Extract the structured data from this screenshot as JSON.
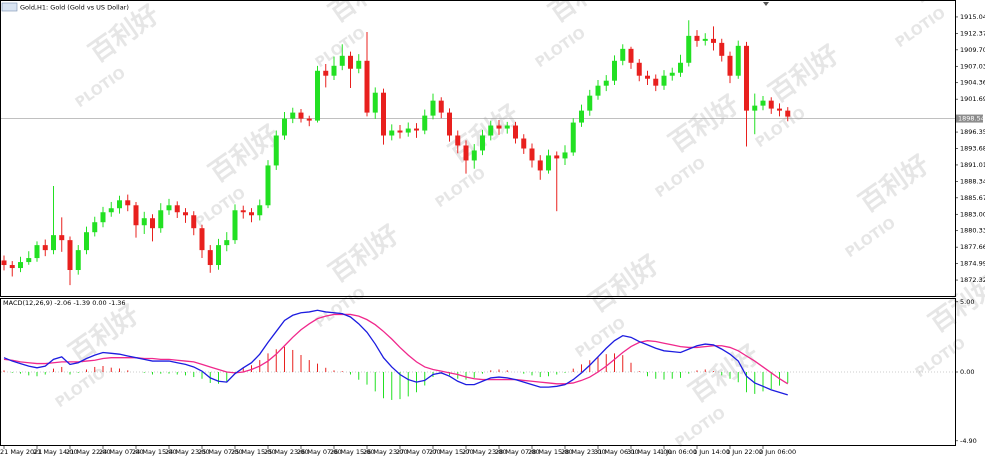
{
  "chart_data": [
    {
      "type": "candlestick",
      "title": "Gold,H1: Gold (Gold vs US Dollar)",
      "categories": [
        "21 May 2021",
        null,
        null,
        null,
        "21 May 14:00",
        null,
        null,
        null,
        "21 May 22:00",
        null,
        null,
        null,
        "24 May 07:00",
        null,
        null,
        null,
        "24 May 15:00",
        null,
        null,
        null,
        "24 May 23:00",
        null,
        null,
        null,
        "25 May 07:00",
        null,
        null,
        null,
        "25 May 15:00",
        null,
        null,
        null,
        "25 May 23:00",
        null,
        null,
        null,
        "26 May 07:00",
        null,
        null,
        null,
        "26 May 15:00",
        null,
        null,
        null,
        "26 May 23:00",
        null,
        null,
        null,
        "27 May 07:00",
        null,
        null,
        null,
        "27 May 15:00",
        null,
        null,
        null,
        "27 May 23:00",
        null,
        null,
        null,
        "28 May 07:00",
        null,
        null,
        null,
        "28 May 15:00",
        null,
        null,
        null,
        "28 May 23:00",
        null,
        null,
        null,
        "31 May 06:00",
        null,
        null,
        null,
        "31 May 14:00",
        null,
        null,
        null,
        "1 Jun 06:00",
        null,
        null,
        null,
        "1 Jun 14:00",
        null,
        null,
        null,
        "1 Jun 22:00",
        null,
        null,
        null,
        "2 Jun 06:00",
        null,
        null,
        null
      ],
      "open": [
        1875.5,
        1874.76,
        1874.27,
        1875.24,
        1875.89,
        1877.99,
        1877.18,
        1879.61,
        1878.8,
        1873.95,
        1877.18,
        1880.09,
        1881.71,
        1883.33,
        1883.98,
        1885.27,
        1884.46,
        1881.22,
        1882.36,
        1880.74,
        1883.65,
        1884.46,
        1883.33,
        1882.84,
        1880.74,
        1877.18,
        1874.76,
        1877.99,
        1878.8,
        1883.65,
        1883.33,
        1882.84,
        1884.46,
        1890.93,
        1895.79,
        1898.54,
        1899.51,
        1898.54,
        1898.21,
        1906.3,
        1905.5,
        1907.11,
        1908.73,
        1906.63,
        1907.92,
        1899.51,
        1902.74,
        1895.79,
        1896.6,
        1896.27,
        1896.92,
        1896.6,
        1899.02,
        1901.45,
        1899.51,
        1895.79,
        1894.17,
        1891.74,
        1893.36,
        1895.79,
        1897.41,
        1896.92,
        1897.41,
        1895.3,
        1893.68,
        1891.74,
        1890.12,
        1892.55,
        1892.07,
        1893.04,
        1897.89,
        1899.83,
        1902.26,
        1903.88,
        1904.69,
        1907.92,
        1909.86,
        1907.6,
        1905.5,
        1905.01,
        1903.88,
        1905.5,
        1905.98,
        1907.6,
        1911.97,
        1911.16,
        1911.48,
        1910.83,
        1908.73,
        1905.5,
        1910.35,
        1899.83,
        1900.64,
        1901.45,
        1900.16,
        1899.83
      ],
      "high": [
        1876.3,
        1875.4,
        1876.1,
        1877.0,
        1878.6,
        1878.9,
        1887.6,
        1882.5,
        1879.4,
        1878.0,
        1881.0,
        1882.6,
        1884.2,
        1885.0,
        1886.0,
        1886.2,
        1885.0,
        1883.4,
        1883.0,
        1884.8,
        1885.5,
        1885.1,
        1884.0,
        1883.5,
        1881.3,
        1878.0,
        1879.0,
        1880.1,
        1884.6,
        1884.4,
        1884.0,
        1885.4,
        1891.8,
        1896.6,
        1899.6,
        1900.3,
        1900.1,
        1899.0,
        1907.1,
        1907.4,
        1908.6,
        1910.6,
        1909.4,
        1909.0,
        1912.6,
        1903.6,
        1903.4,
        1897.6,
        1897.5,
        1897.9,
        1897.8,
        1900.0,
        1902.6,
        1902.0,
        1900.2,
        1896.6,
        1895.0,
        1894.4,
        1896.7,
        1898.2,
        1898.3,
        1898.0,
        1898.0,
        1896.0,
        1894.5,
        1892.6,
        1893.5,
        1893.2,
        1894.2,
        1898.6,
        1900.8,
        1903.2,
        1904.8,
        1905.6,
        1908.8,
        1910.6,
        1910.2,
        1908.2,
        1906.3,
        1905.7,
        1906.4,
        1906.8,
        1908.9,
        1914.5,
        1912.9,
        1912.4,
        1913.5,
        1911.5,
        1909.4,
        1911.2,
        1911.0,
        1902.6,
        1902.2,
        1902.0,
        1901.0,
        1900.4
      ],
      "low": [
        1873.9,
        1872.9,
        1873.6,
        1874.8,
        1875.3,
        1876.2,
        1876.5,
        1876.9,
        1871.5,
        1873.2,
        1876.5,
        1879.4,
        1880.9,
        1882.6,
        1883.1,
        1883.5,
        1879.2,
        1879.8,
        1878.6,
        1880.0,
        1882.9,
        1882.4,
        1881.6,
        1879.6,
        1875.9,
        1873.5,
        1874.0,
        1877.0,
        1878.2,
        1882.3,
        1881.7,
        1882.0,
        1884.0,
        1890.2,
        1895.1,
        1897.8,
        1897.9,
        1897.3,
        1897.9,
        1903.6,
        1904.8,
        1906.4,
        1903.5,
        1905.9,
        1898.9,
        1898.5,
        1894.3,
        1895.0,
        1895.3,
        1895.6,
        1895.4,
        1896.0,
        1898.4,
        1898.6,
        1894.8,
        1892.9,
        1889.6,
        1890.4,
        1892.6,
        1895.0,
        1895.9,
        1896.1,
        1894.5,
        1892.8,
        1890.6,
        1888.6,
        1889.6,
        1883.5,
        1891.0,
        1892.5,
        1897.2,
        1899.0,
        1901.6,
        1903.0,
        1904.0,
        1907.2,
        1906.6,
        1904.6,
        1904.0,
        1903.0,
        1903.2,
        1904.7,
        1905.3,
        1907.0,
        1910.2,
        1910.4,
        1909.6,
        1907.8,
        1904.3,
        1905.0,
        1894.0,
        1896.0,
        1899.9,
        1899.3,
        1898.9,
        1898.1
      ],
      "close": [
        1874.76,
        1874.27,
        1875.24,
        1875.89,
        1877.99,
        1877.18,
        1879.61,
        1878.8,
        1873.95,
        1877.18,
        1880.09,
        1881.71,
        1883.33,
        1883.98,
        1885.27,
        1884.46,
        1881.22,
        1882.36,
        1880.74,
        1883.65,
        1884.46,
        1883.33,
        1882.84,
        1880.74,
        1877.18,
        1874.76,
        1877.99,
        1878.8,
        1883.65,
        1883.33,
        1882.84,
        1884.46,
        1890.93,
        1895.79,
        1898.54,
        1899.51,
        1898.54,
        1898.21,
        1906.3,
        1905.5,
        1907.11,
        1908.73,
        1906.63,
        1907.92,
        1899.51,
        1902.74,
        1895.79,
        1896.6,
        1896.27,
        1896.92,
        1896.6,
        1899.02,
        1901.45,
        1899.51,
        1895.79,
        1894.17,
        1891.74,
        1893.36,
        1895.79,
        1897.41,
        1896.92,
        1897.41,
        1895.3,
        1893.68,
        1891.74,
        1890.12,
        1892.55,
        1892.07,
        1893.04,
        1897.89,
        1899.83,
        1902.26,
        1903.88,
        1904.69,
        1907.92,
        1909.86,
        1907.6,
        1905.5,
        1905.01,
        1903.88,
        1905.5,
        1905.98,
        1907.6,
        1911.97,
        1911.16,
        1911.48,
        1910.83,
        1908.73,
        1905.5,
        1910.35,
        1899.83,
        1900.64,
        1901.45,
        1900.16,
        1899.83,
        1898.86
      ],
      "up_color": "#22e022",
      "down_color": "#e8201e",
      "ylim": [
        1869.73,
        1917.63
      ],
      "yticks": [
        1915.04,
        1912.37,
        {
          "value": 1909.7,
          "label": "1909.70"
        },
        1907.03,
        1904.36,
        1901.69,
        1896.35,
        1893.68,
        1891.01,
        1888.34,
        1885.67,
        {
          "value": 1883,
          "label": "1883.00"
        },
        1880.33,
        1877.66,
        1874.99,
        1872.32
      ],
      "current_price": 1898.54
    },
    {
      "type": "macd",
      "title": "MACD(12,26,9) -2.06 -1.39 0.00 -1.36",
      "histogram": {
        "positive_color": "#e8201e",
        "negative_color": "#22e022",
        "values": [
          0.12,
          -0.06,
          -0.12,
          -0.24,
          -0.3,
          -0.18,
          0.24,
          0.36,
          -0.18,
          -0.06,
          0.18,
          0.36,
          0.43,
          0.31,
          0.25,
          0.12,
          0.0,
          -0.06,
          -0.18,
          -0.12,
          -0.12,
          -0.18,
          -0.24,
          -0.36,
          -0.48,
          -0.78,
          -0.84,
          -0.72,
          -0.06,
          0.3,
          0.48,
          0.85,
          1.33,
          1.62,
          1.8,
          1.57,
          1.21,
          0.85,
          0.6,
          0.3,
          0.12,
          0.06,
          -0.18,
          -0.55,
          -0.9,
          -1.38,
          -1.87,
          -1.99,
          -1.93,
          -1.74,
          -1.44,
          -0.96,
          -0.36,
          -0.12,
          -0.24,
          -0.48,
          -0.54,
          -0.42,
          -0.12,
          0.12,
          0.18,
          0.12,
          0.0,
          -0.12,
          -0.24,
          -0.36,
          -0.3,
          -0.18,
          -0.06,
          0.24,
          0.54,
          0.84,
          1.08,
          1.27,
          1.33,
          1.2,
          0.66,
          0.06,
          -0.3,
          -0.48,
          -0.54,
          -0.48,
          -0.42,
          -0.12,
          0.12,
          0.18,
          0.06,
          -0.24,
          -0.48,
          -0.73,
          -1.44,
          -1.56,
          -1.38,
          -1.21,
          -0.97,
          -0.79
        ]
      },
      "macd": {
        "color": "#1c1ce0",
        "values": [
          1.02,
          0.78,
          0.6,
          0.42,
          0.3,
          0.42,
          0.9,
          1.08,
          0.54,
          0.66,
          0.96,
          1.2,
          1.39,
          1.33,
          1.27,
          1.14,
          1.02,
          0.9,
          0.78,
          0.78,
          0.78,
          0.66,
          0.54,
          0.36,
          0.06,
          -0.42,
          -0.66,
          -0.72,
          -0.12,
          0.3,
          0.66,
          1.27,
          2.11,
          2.89,
          3.67,
          4.04,
          4.22,
          4.28,
          4.4,
          4.28,
          4.22,
          4.16,
          3.92,
          3.43,
          2.83,
          1.99,
          1.02,
          0.36,
          -0.18,
          -0.54,
          -0.72,
          -0.6,
          -0.18,
          -0.06,
          -0.3,
          -0.66,
          -0.9,
          -0.9,
          -0.66,
          -0.42,
          -0.36,
          -0.42,
          -0.54,
          -0.72,
          -0.9,
          -1.08,
          -1.08,
          -1.02,
          -0.9,
          -0.54,
          -0.06,
          0.48,
          1.08,
          1.69,
          2.23,
          2.59,
          2.47,
          2.17,
          1.93,
          1.69,
          1.51,
          1.45,
          1.39,
          1.63,
          1.87,
          1.99,
          1.93,
          1.63,
          1.27,
          0.78,
          -0.3,
          -0.78,
          -1.02,
          -1.27,
          -1.45,
          -1.63
        ]
      },
      "signal": {
        "color": "#f0288c",
        "values": [
          0.9,
          0.84,
          0.72,
          0.66,
          0.6,
          0.6,
          0.66,
          0.72,
          0.72,
          0.72,
          0.78,
          0.84,
          0.96,
          1.02,
          1.02,
          1.02,
          1.02,
          0.96,
          0.96,
          0.9,
          0.9,
          0.84,
          0.78,
          0.72,
          0.54,
          0.36,
          0.18,
          0.0,
          -0.06,
          0.0,
          0.18,
          0.42,
          0.78,
          1.27,
          1.87,
          2.47,
          3.01,
          3.43,
          3.8,
          3.98,
          4.1,
          4.1,
          4.1,
          3.98,
          3.73,
          3.37,
          2.89,
          2.35,
          1.75,
          1.2,
          0.72,
          0.36,
          0.18,
          0.06,
          -0.06,
          -0.18,
          -0.36,
          -0.48,
          -0.54,
          -0.54,
          -0.54,
          -0.54,
          -0.54,
          -0.6,
          -0.66,
          -0.72,
          -0.78,
          -0.84,
          -0.84,
          -0.78,
          -0.6,
          -0.36,
          0.0,
          0.42,
          0.9,
          1.39,
          1.81,
          2.11,
          2.23,
          2.17,
          2.05,
          1.93,
          1.81,
          1.75,
          1.75,
          1.81,
          1.87,
          1.87,
          1.75,
          1.51,
          1.14,
          0.78,
          0.36,
          -0.06,
          -0.48,
          -0.84
        ]
      },
      "ylim": [
        -5.2,
        5.2
      ],
      "yticks": [
        {
          "value": 5,
          "label": "5.00"
        },
        {
          "value": 0,
          "label": "0.00"
        },
        {
          "value": -4.9,
          "label": "-4.90"
        }
      ]
    }
  ],
  "watermark": {
    "brand": "PLOTIO",
    "text": "百利好"
  }
}
